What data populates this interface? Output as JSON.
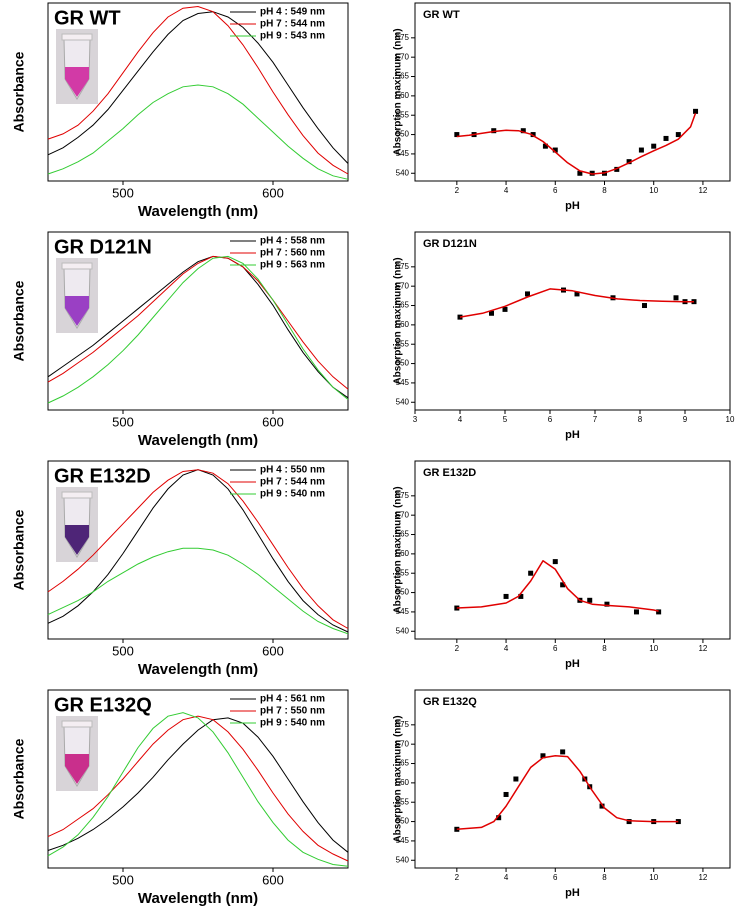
{
  "chart_data": [
    {
      "type": "line",
      "title": "GR WT",
      "x_label": "Wavelength (nm)",
      "y_label": "Absorbance",
      "x": [
        450,
        460,
        470,
        480,
        490,
        500,
        510,
        520,
        530,
        540,
        550,
        560,
        570,
        580,
        590,
        600,
        610,
        620,
        630,
        640,
        650
      ],
      "xlim": [
        450,
        650
      ],
      "xticks": [
        500,
        600
      ],
      "ylim": [
        0,
        1.02
      ],
      "legend": "upper right",
      "series": [
        {
          "name": "pH 4 : 549 nm",
          "color": "#000000",
          "values": [
            0.15,
            0.19,
            0.25,
            0.32,
            0.41,
            0.52,
            0.63,
            0.74,
            0.84,
            0.92,
            0.96,
            0.97,
            0.94,
            0.88,
            0.79,
            0.68,
            0.55,
            0.42,
            0.3,
            0.19,
            0.1
          ]
        },
        {
          "name": "pH 7 : 544 nm",
          "color": "#e00000",
          "values": [
            0.24,
            0.27,
            0.32,
            0.4,
            0.5,
            0.62,
            0.74,
            0.85,
            0.94,
            0.99,
            1.0,
            0.97,
            0.89,
            0.78,
            0.65,
            0.51,
            0.38,
            0.26,
            0.16,
            0.09,
            0.04
          ]
        },
        {
          "name": "pH 9 : 543 nm",
          "color": "#33cc33",
          "values": [
            0.04,
            0.07,
            0.11,
            0.16,
            0.23,
            0.3,
            0.38,
            0.45,
            0.5,
            0.54,
            0.55,
            0.54,
            0.5,
            0.44,
            0.36,
            0.28,
            0.2,
            0.13,
            0.07,
            0.03,
            0.01
          ]
        }
      ]
    },
    {
      "type": "scatter",
      "title": "GR WT",
      "x_label": "pH",
      "y_label": "Absorption maximum (nm)",
      "xlim": [
        0.3,
        13.1
      ],
      "xticks": [
        2,
        4,
        6,
        8,
        10,
        12
      ],
      "ylim": [
        538,
        584
      ],
      "yticks": [
        540,
        545,
        550,
        555,
        560,
        565,
        570,
        575
      ],
      "series": [
        {
          "color": "#000000",
          "x": [
            2,
            2.7,
            3.5,
            4.7,
            5.1,
            5.6,
            6,
            7,
            7.5,
            8,
            8.5,
            9,
            9.5,
            10,
            10.5,
            11,
            11.7
          ],
          "values": [
            550,
            550,
            551,
            551,
            550,
            547,
            546,
            540,
            540,
            540,
            541,
            543,
            546,
            547,
            549,
            550,
            556
          ]
        },
        {
          "type": "line",
          "color": "#e00000",
          "x": [
            2,
            2.5,
            3,
            3.5,
            4,
            4.5,
            5,
            5.5,
            6,
            6.5,
            7,
            7.5,
            8,
            8.5,
            9,
            9.5,
            10,
            10.5,
            11,
            11.5,
            11.7
          ],
          "values": [
            549.5,
            549.8,
            550.3,
            550.8,
            551.1,
            551.0,
            550.1,
            548.2,
            545.5,
            542.7,
            540.6,
            539.8,
            540.1,
            541.2,
            542.7,
            544.3,
            545.8,
            547.2,
            548.8,
            552.0,
            555.5
          ]
        }
      ]
    },
    {
      "type": "line",
      "title": "GR D121N",
      "x_label": "Wavelength (nm)",
      "y_label": "Absorbance",
      "x": [
        450,
        460,
        470,
        480,
        490,
        500,
        510,
        520,
        530,
        540,
        550,
        560,
        570,
        580,
        590,
        600,
        610,
        620,
        630,
        640,
        650
      ],
      "xlim": [
        450,
        650
      ],
      "xticks": [
        500,
        600
      ],
      "ylim": [
        0,
        1.02
      ],
      "legend": "upper right",
      "series": [
        {
          "name": "pH 4 : 558 nm",
          "color": "#000000",
          "values": [
            0.19,
            0.25,
            0.31,
            0.37,
            0.44,
            0.51,
            0.58,
            0.65,
            0.72,
            0.79,
            0.85,
            0.88,
            0.87,
            0.82,
            0.72,
            0.6,
            0.46,
            0.33,
            0.22,
            0.13,
            0.07
          ]
        },
        {
          "name": "pH 7 : 560 nm",
          "color": "#e00000",
          "values": [
            0.16,
            0.21,
            0.27,
            0.33,
            0.4,
            0.47,
            0.54,
            0.62,
            0.7,
            0.78,
            0.84,
            0.88,
            0.87,
            0.82,
            0.74,
            0.63,
            0.51,
            0.39,
            0.28,
            0.19,
            0.12
          ]
        },
        {
          "name": "pH 9 : 563 nm",
          "color": "#33cc33",
          "values": [
            0.04,
            0.08,
            0.13,
            0.19,
            0.26,
            0.34,
            0.43,
            0.53,
            0.63,
            0.73,
            0.81,
            0.87,
            0.88,
            0.84,
            0.75,
            0.63,
            0.49,
            0.35,
            0.23,
            0.13,
            0.06
          ]
        }
      ]
    },
    {
      "type": "scatter",
      "title": "GR D121N",
      "x_label": "pH",
      "y_label": "Absorption maximum (nm)",
      "xlim": [
        3,
        10
      ],
      "xticks": [
        3,
        4,
        5,
        6,
        7,
        8,
        9,
        10
      ],
      "ylim": [
        538,
        584
      ],
      "yticks": [
        540,
        545,
        550,
        555,
        560,
        565,
        570,
        575
      ],
      "series": [
        {
          "color": "#000000",
          "x": [
            4,
            4.7,
            5,
            5.5,
            6.3,
            6.6,
            7.4,
            8.1,
            8.8,
            9,
            9.2
          ],
          "values": [
            562,
            563,
            564,
            568,
            569,
            568,
            567,
            565,
            567,
            566,
            566
          ]
        },
        {
          "type": "line",
          "color": "#e00000",
          "x": [
            4,
            4.5,
            5,
            5.5,
            6,
            6.5,
            7,
            7.5,
            8,
            8.5,
            9,
            9.2
          ],
          "values": [
            562,
            563,
            564.8,
            567.2,
            569.3,
            568.8,
            567.6,
            566.7,
            566.3,
            566.1,
            566.0,
            566.0
          ]
        }
      ]
    },
    {
      "type": "line",
      "title": "GR E132D",
      "x_label": "Wavelength (nm)",
      "y_label": "Absorbance",
      "x": [
        450,
        460,
        470,
        480,
        490,
        500,
        510,
        520,
        530,
        540,
        550,
        560,
        570,
        580,
        590,
        600,
        610,
        620,
        630,
        640,
        650
      ],
      "xlim": [
        450,
        650
      ],
      "xticks": [
        500,
        600
      ],
      "ylim": [
        0,
        1.02
      ],
      "legend": "upper right",
      "series": [
        {
          "name": "pH 4 : 550 nm",
          "color": "#000000",
          "values": [
            0.09,
            0.13,
            0.19,
            0.27,
            0.37,
            0.49,
            0.62,
            0.75,
            0.86,
            0.94,
            0.97,
            0.94,
            0.86,
            0.74,
            0.6,
            0.46,
            0.33,
            0.22,
            0.14,
            0.08,
            0.04
          ]
        },
        {
          "name": "pH 7 : 544 nm",
          "color": "#e00000",
          "values": [
            0.27,
            0.33,
            0.4,
            0.48,
            0.57,
            0.66,
            0.75,
            0.84,
            0.91,
            0.96,
            0.97,
            0.95,
            0.89,
            0.79,
            0.67,
            0.54,
            0.41,
            0.29,
            0.19,
            0.11,
            0.06
          ]
        },
        {
          "name": "pH 9 : 540 nm",
          "color": "#33cc33",
          "values": [
            0.14,
            0.18,
            0.22,
            0.27,
            0.33,
            0.38,
            0.43,
            0.47,
            0.5,
            0.52,
            0.52,
            0.51,
            0.48,
            0.43,
            0.37,
            0.3,
            0.23,
            0.16,
            0.1,
            0.06,
            0.03
          ]
        }
      ]
    },
    {
      "type": "scatter",
      "title": "GR E132D",
      "x_label": "pH",
      "y_label": "Absorption maximum (nm)",
      "xlim": [
        0.3,
        13.1
      ],
      "xticks": [
        2,
        4,
        6,
        8,
        10,
        12
      ],
      "ylim": [
        538,
        584
      ],
      "yticks": [
        540,
        545,
        550,
        555,
        560,
        565,
        570,
        575
      ],
      "series": [
        {
          "color": "#000000",
          "x": [
            2,
            4,
            4.6,
            5,
            6,
            6.3,
            7,
            7.4,
            8.1,
            9.3,
            10.2
          ],
          "values": [
            546,
            549,
            549,
            555,
            558,
            552,
            548,
            548,
            547,
            545,
            545
          ]
        },
        {
          "type": "line",
          "color": "#e00000",
          "x": [
            2,
            3,
            4,
            4.5,
            5,
            5.5,
            6,
            6.5,
            7,
            7.5,
            8,
            9,
            10,
            10.2
          ],
          "values": [
            546,
            546.3,
            547.3,
            549,
            553,
            558.2,
            556,
            551,
            548,
            547,
            546.7,
            546.3,
            545.5,
            545.2
          ]
        }
      ]
    },
    {
      "type": "line",
      "title": "GR E132Q",
      "x_label": "Wavelength (nm)",
      "y_label": "Absorbance",
      "x": [
        450,
        460,
        470,
        480,
        490,
        500,
        510,
        520,
        530,
        540,
        550,
        560,
        570,
        580,
        590,
        600,
        610,
        620,
        630,
        640,
        650
      ],
      "xlim": [
        450,
        650
      ],
      "xticks": [
        500,
        600
      ],
      "ylim": [
        0,
        1.02
      ],
      "legend": "upper right",
      "series": [
        {
          "name": "pH 4 : 561 nm",
          "color": "#000000",
          "values": [
            0.1,
            0.13,
            0.17,
            0.22,
            0.28,
            0.35,
            0.43,
            0.52,
            0.62,
            0.71,
            0.79,
            0.85,
            0.86,
            0.83,
            0.75,
            0.64,
            0.51,
            0.38,
            0.26,
            0.16,
            0.09
          ]
        },
        {
          "name": "pH 7 : 550 nm",
          "color": "#e00000",
          "values": [
            0.18,
            0.22,
            0.28,
            0.34,
            0.42,
            0.51,
            0.61,
            0.71,
            0.79,
            0.85,
            0.87,
            0.85,
            0.78,
            0.68,
            0.56,
            0.43,
            0.31,
            0.21,
            0.13,
            0.08,
            0.04
          ]
        },
        {
          "name": "pH 9 : 540 nm",
          "color": "#33cc33",
          "values": [
            0.07,
            0.12,
            0.19,
            0.29,
            0.41,
            0.55,
            0.69,
            0.8,
            0.87,
            0.89,
            0.86,
            0.78,
            0.66,
            0.52,
            0.38,
            0.26,
            0.16,
            0.09,
            0.05,
            0.02,
            0.01
          ]
        }
      ]
    },
    {
      "type": "scatter",
      "title": "GR E132Q",
      "x_label": "pH",
      "y_label": "Absorption maximum (nm)",
      "xlim": [
        0.3,
        13.1
      ],
      "xticks": [
        2,
        4,
        6,
        8,
        10,
        12
      ],
      "ylim": [
        538,
        584
      ],
      "yticks": [
        540,
        545,
        550,
        555,
        560,
        565,
        570,
        575
      ],
      "series": [
        {
          "color": "#000000",
          "x": [
            2,
            3.7,
            4,
            4.4,
            5.5,
            6.3,
            7.2,
            7.4,
            7.9,
            9,
            10,
            11
          ],
          "values": [
            548,
            551,
            557,
            561,
            567,
            568,
            561,
            559,
            554,
            550,
            550,
            550
          ]
        },
        {
          "type": "line",
          "color": "#e00000",
          "x": [
            2,
            3,
            3.5,
            4,
            4.5,
            5,
            5.5,
            6,
            6.5,
            7,
            7.5,
            8,
            8.5,
            9,
            10,
            11
          ],
          "values": [
            548,
            548.5,
            550,
            554,
            559,
            564,
            566.5,
            567,
            566.8,
            563,
            558,
            553.5,
            551,
            550.2,
            550,
            550
          ]
        }
      ]
    }
  ]
}
